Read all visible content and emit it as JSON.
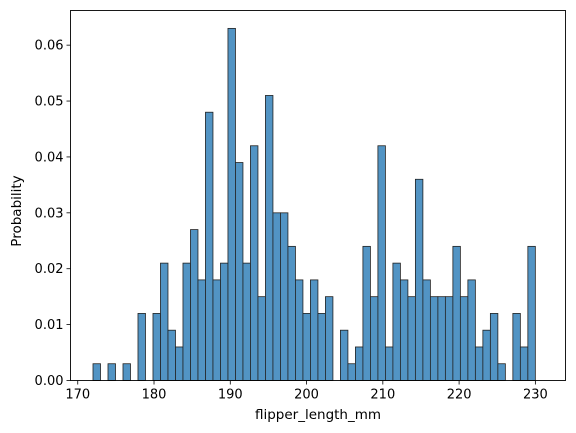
{
  "chart_data": {
    "type": "bar",
    "subtype": "histogram",
    "title": "",
    "xlabel": "flipper_length_mm",
    "ylabel": "Probability",
    "xlim": [
      169.05,
      233.95
    ],
    "ylim": [
      0,
      0.0662
    ],
    "grid": false,
    "bin_start": 172,
    "bin_width": 0.983,
    "x_ticks": [
      170,
      180,
      190,
      200,
      210,
      220,
      230
    ],
    "y_ticks": [
      0.0,
      0.01,
      0.02,
      0.03,
      0.04,
      0.05,
      0.06
    ],
    "x_tick_labels": [
      "170",
      "180",
      "190",
      "200",
      "210",
      "220",
      "230"
    ],
    "y_tick_labels": [
      "0.00",
      "0.01",
      "0.02",
      "0.03",
      "0.04",
      "0.05",
      "0.06"
    ],
    "values": [
      0.003,
      0.0,
      0.003,
      0.0,
      0.003,
      0.0,
      0.012,
      0.0,
      0.012,
      0.021,
      0.009,
      0.006,
      0.021,
      0.027,
      0.018,
      0.048,
      0.018,
      0.021,
      0.063,
      0.039,
      0.021,
      0.042,
      0.015,
      0.051,
      0.03,
      0.03,
      0.024,
      0.018,
      0.012,
      0.018,
      0.012,
      0.015,
      0.0,
      0.009,
      0.003,
      0.006,
      0.024,
      0.015,
      0.042,
      0.006,
      0.021,
      0.018,
      0.015,
      0.036,
      0.018,
      0.015,
      0.015,
      0.015,
      0.024,
      0.015,
      0.018,
      0.006,
      0.009,
      0.012,
      0.003,
      0.0,
      0.012,
      0.006,
      0.024
    ],
    "colors": {
      "bar_fill": "#5294c4",
      "bar_edge": "#222222",
      "axes": "#000000"
    }
  }
}
